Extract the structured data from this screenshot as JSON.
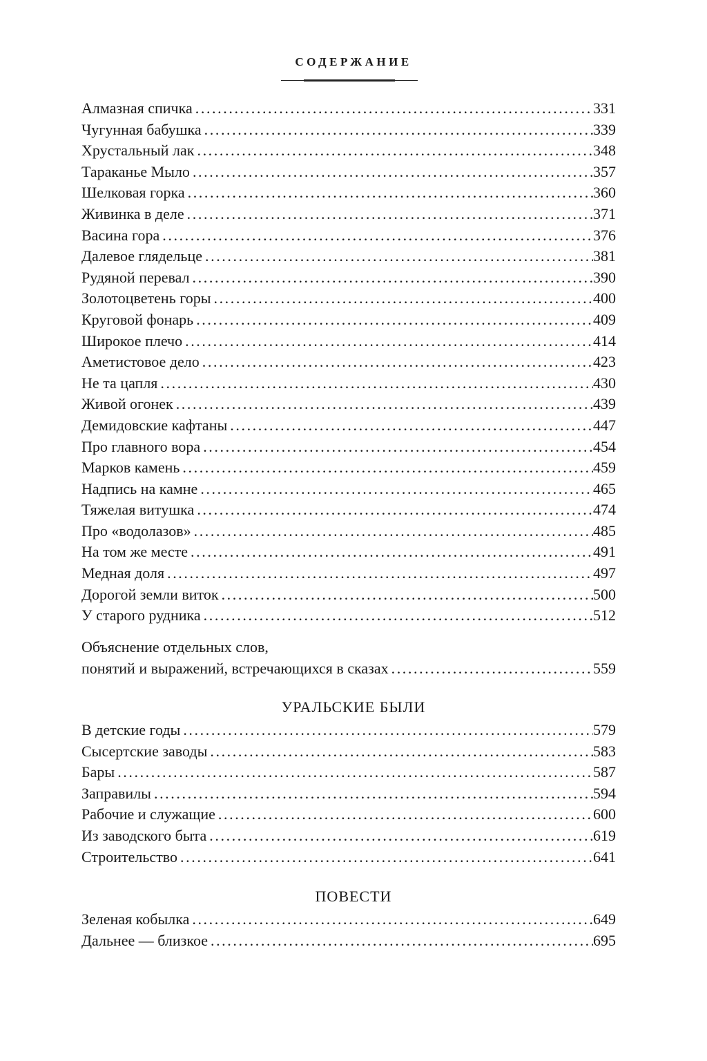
{
  "header": {
    "title": "СОДЕРЖАНИЕ"
  },
  "entries_1": [
    {
      "title": "Алмазная спичка",
      "page": "331"
    },
    {
      "title": "Чугунная бабушка",
      "page": "339"
    },
    {
      "title": "Хрустальный лак",
      "page": "348"
    },
    {
      "title": "Тараканье Мыло",
      "page": "357"
    },
    {
      "title": "Шелковая горка",
      "page": "360"
    },
    {
      "title": "Живинка в деле",
      "page": "371"
    },
    {
      "title": "Васина гора",
      "page": "376"
    },
    {
      "title": "Далевое глядельце",
      "page": "381"
    },
    {
      "title": "Рудяной перевал",
      "page": "390"
    },
    {
      "title": "Золотоцветень горы",
      "page": "400"
    },
    {
      "title": "Круговой фонарь",
      "page": "409"
    },
    {
      "title": "Широкое плечо",
      "page": "414"
    },
    {
      "title": "Аметистовое дело",
      "page": "423"
    },
    {
      "title": "Не та цапля",
      "page": "430"
    },
    {
      "title": "Живой огонек",
      "page": "439"
    },
    {
      "title": "Демидовские кафтаны",
      "page": "447"
    },
    {
      "title": "Про главного вора",
      "page": "454"
    },
    {
      "title": "Марков камень",
      "page": "459"
    },
    {
      "title": "Надпись на камне",
      "page": "465"
    },
    {
      "title": "Тяжелая витушка",
      "page": "474"
    },
    {
      "title": "Про «водолазов»",
      "page": "485"
    },
    {
      "title": "На том же месте",
      "page": "491"
    },
    {
      "title": "Медная доля",
      "page": "497"
    },
    {
      "title": "Дорогой земли виток",
      "page": "500"
    },
    {
      "title": "У старого рудника",
      "page": "512"
    }
  ],
  "glossary": {
    "line1": "Объяснение отдельных слов,",
    "line2": "понятий и выражений, встречающихся в сказах",
    "page": "559"
  },
  "section_2": {
    "title": "УРАЛЬСКИЕ БЫЛИ",
    "entries": [
      {
        "title": "В детские годы",
        "page": "579"
      },
      {
        "title": "Сысертские заводы",
        "page": "583"
      },
      {
        "title": "Бары",
        "page": "587"
      },
      {
        "title": "Заправилы",
        "page": "594"
      },
      {
        "title": "Рабочие и служащие",
        "page": "600"
      },
      {
        "title": "Из заводского быта",
        "page": "619"
      },
      {
        "title": "Строительство",
        "page": "641"
      }
    ]
  },
  "section_3": {
    "title": "ПОВЕСТИ",
    "entries": [
      {
        "title": "Зеленая кобылка",
        "page": "649"
      },
      {
        "title": "Дальнее — близкое",
        "page": "695"
      }
    ]
  }
}
